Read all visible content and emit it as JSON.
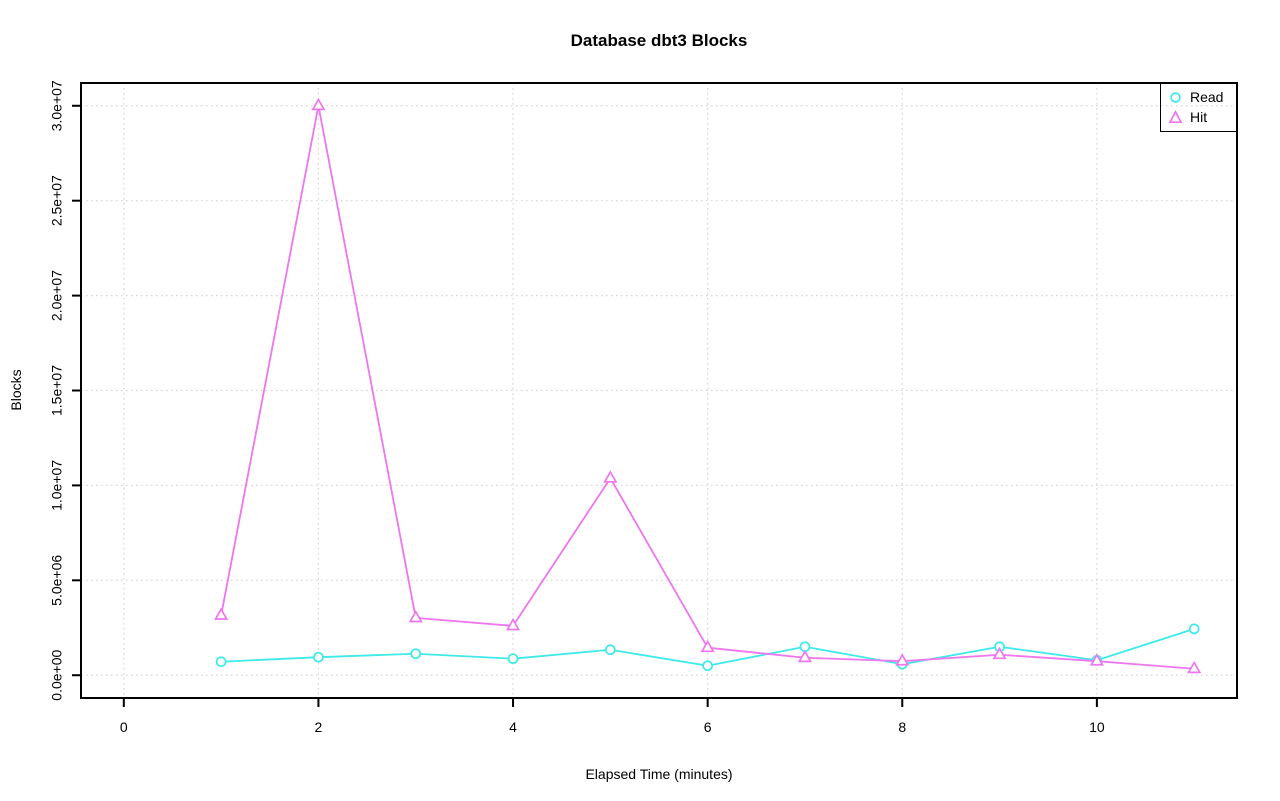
{
  "title": "Database dbt3 Blocks",
  "chart_data": {
    "type": "line",
    "title": "Database dbt3 Blocks",
    "xlabel": "Elapsed Time (minutes)",
    "ylabel": "Blocks",
    "x": [
      1,
      2,
      3,
      4,
      5,
      6,
      7,
      8,
      9,
      10,
      11
    ],
    "series": [
      {
        "name": "Read",
        "marker": "circle",
        "color": "#3DE9E9",
        "values": [
          710000,
          950000,
          1130000,
          870000,
          1340000,
          500000,
          1500000,
          580000,
          1500000,
          790000,
          2440000
        ]
      },
      {
        "name": "Hit",
        "marker": "triangle",
        "color": "#EE76EE",
        "values": [
          3150000,
          30000000,
          3020000,
          2600000,
          10380000,
          1450000,
          920000,
          740000,
          1080000,
          740000,
          340000
        ]
      }
    ],
    "xlim": [
      0,
      11
    ],
    "ylim": [
      0,
      30000000
    ],
    "axis_expansion": 0.04,
    "x_ticks": [
      0,
      2,
      4,
      6,
      8,
      10
    ],
    "x_tick_labels": [
      "0",
      "2",
      "4",
      "6",
      "8",
      "10"
    ],
    "y_ticks": [
      0,
      5000000,
      10000000,
      15000000,
      20000000,
      25000000,
      30000000
    ],
    "y_tick_labels": [
      "0.0e+00",
      "5.0e+06",
      "1.0e+07",
      "1.5e+07",
      "2.0e+07",
      "2.5e+07",
      "3.0e+07"
    ],
    "grid": true,
    "grid_color": "#D6D6D6",
    "legend": {
      "position": "top-right",
      "entries": [
        {
          "label": "Read"
        },
        {
          "label": "Hit"
        }
      ]
    }
  },
  "colors": {
    "background": "#FFFFFF",
    "axis": "#000000",
    "text": "#000000"
  }
}
